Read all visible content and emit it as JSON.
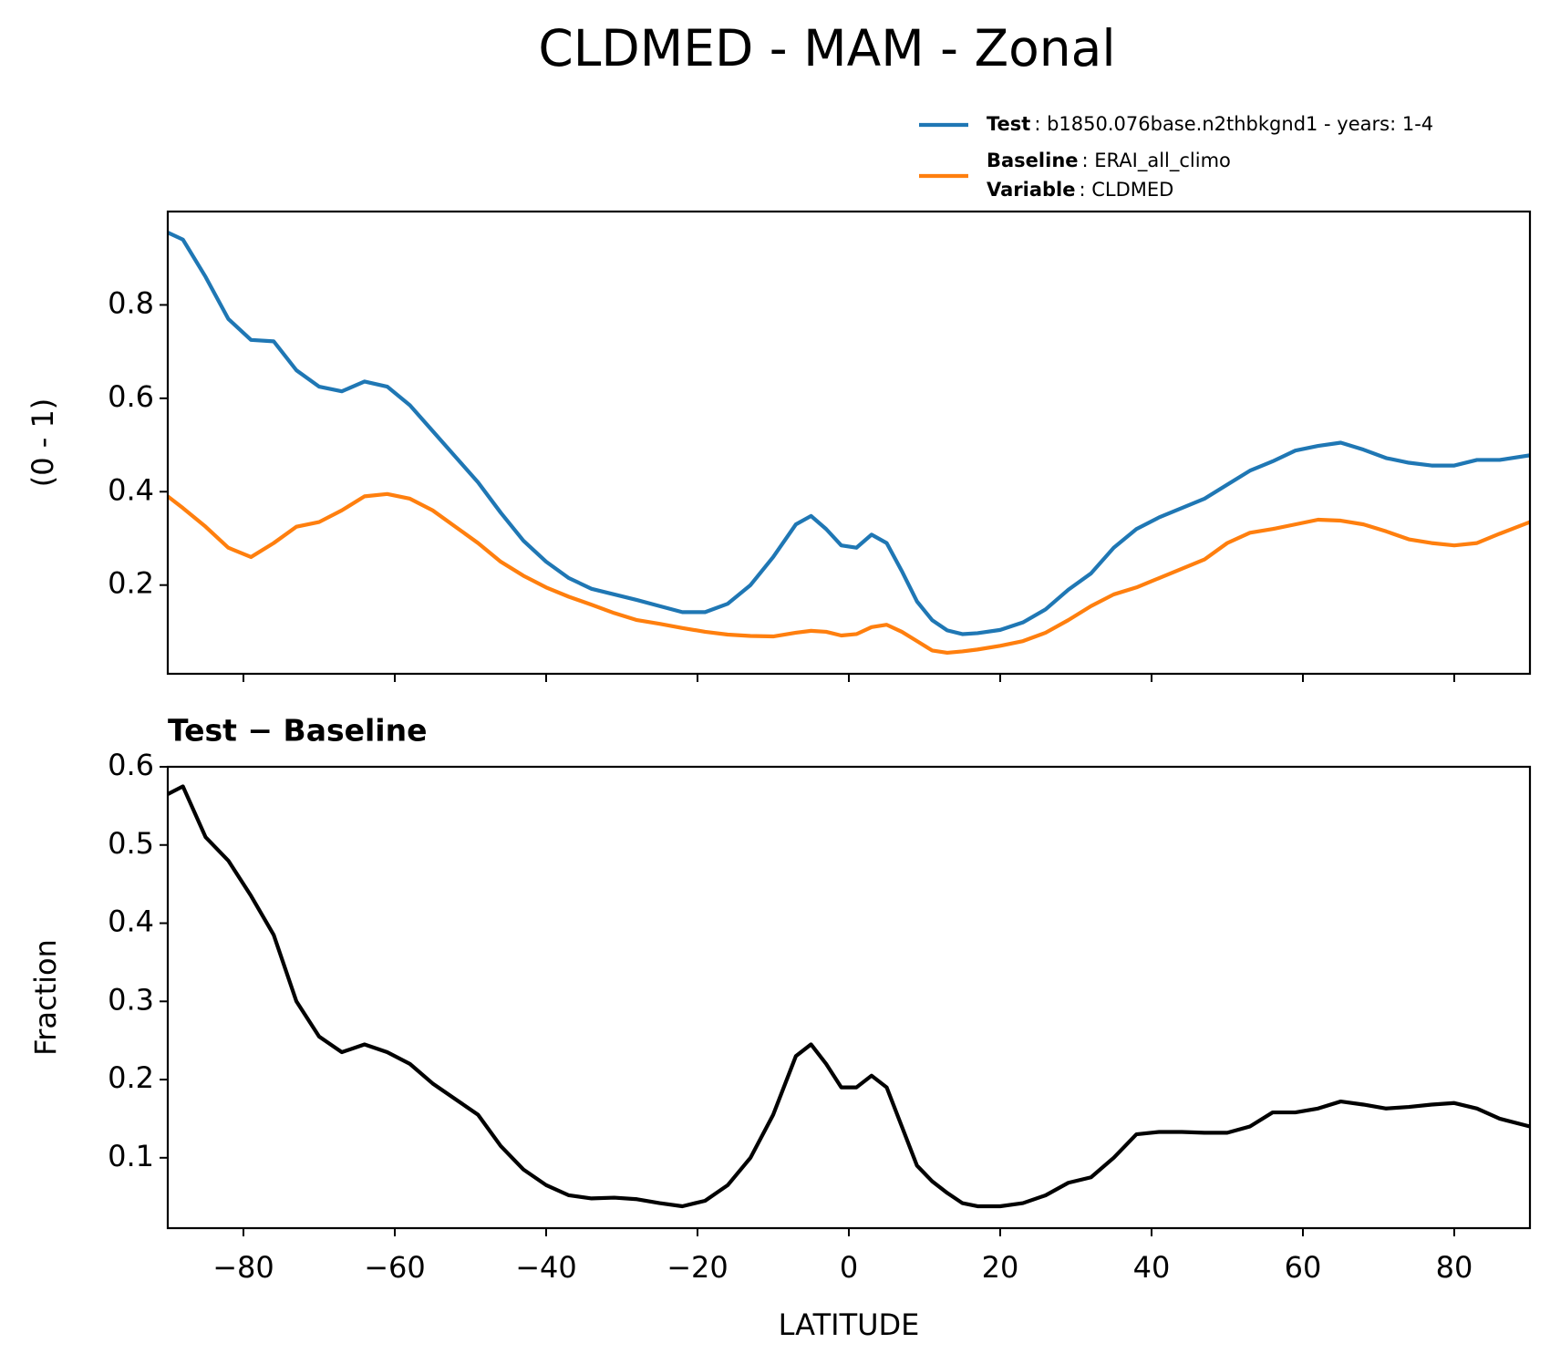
{
  "title": "CLDMED - MAM - Zonal",
  "chart_data": [
    {
      "type": "line",
      "ylabel": "(0 - 1)",
      "x": [
        -90,
        -88,
        -85,
        -82,
        -79,
        -76,
        -73,
        -70,
        -67,
        -64,
        -61,
        -58,
        -55,
        -52,
        -49,
        -46,
        -43,
        -40,
        -37,
        -34,
        -31,
        -28,
        -25,
        -22,
        -19,
        -16,
        -13,
        -10,
        -7,
        -5,
        -3,
        -1,
        1,
        3,
        5,
        7,
        9,
        11,
        13,
        15,
        17,
        20,
        23,
        26,
        29,
        32,
        35,
        38,
        41,
        44,
        47,
        50,
        53,
        56,
        59,
        62,
        65,
        68,
        71,
        74,
        77,
        80,
        83,
        86,
        90
      ],
      "series": [
        {
          "name": "Test",
          "description": ": b1850.076base.n2thbkgnd1 - years: 1-4",
          "color": "#1f77b4",
          "values": [
            0.955,
            0.94,
            0.86,
            0.77,
            0.725,
            0.722,
            0.66,
            0.625,
            0.615,
            0.636,
            0.625,
            0.585,
            0.53,
            0.475,
            0.42,
            0.355,
            0.295,
            0.25,
            0.215,
            0.192,
            0.18,
            0.168,
            0.155,
            0.142,
            0.142,
            0.16,
            0.2,
            0.26,
            0.33,
            0.348,
            0.32,
            0.285,
            0.28,
            0.308,
            0.29,
            0.23,
            0.165,
            0.125,
            0.103,
            0.095,
            0.097,
            0.104,
            0.12,
            0.148,
            0.19,
            0.225,
            0.28,
            0.32,
            0.345,
            0.365,
            0.385,
            0.415,
            0.445,
            0.465,
            0.488,
            0.498,
            0.505,
            0.49,
            0.472,
            0.462,
            0.456,
            0.456,
            0.468,
            0.468,
            0.478
          ]
        },
        {
          "name": "Baseline",
          "description": ": ERAI_all_climo",
          "color": "#ff7f0e",
          "values": [
            0.39,
            0.365,
            0.325,
            0.28,
            0.26,
            0.29,
            0.325,
            0.335,
            0.36,
            0.39,
            0.395,
            0.385,
            0.36,
            0.325,
            0.29,
            0.25,
            0.22,
            0.195,
            0.175,
            0.158,
            0.14,
            0.125,
            0.117,
            0.108,
            0.1,
            0.094,
            0.091,
            0.09,
            0.098,
            0.102,
            0.1,
            0.092,
            0.095,
            0.11,
            0.115,
            0.1,
            0.08,
            0.06,
            0.055,
            0.058,
            0.062,
            0.07,
            0.08,
            0.098,
            0.125,
            0.155,
            0.18,
            0.195,
            0.215,
            0.235,
            0.255,
            0.29,
            0.312,
            0.32,
            0.33,
            0.34,
            0.338,
            0.33,
            0.315,
            0.298,
            0.29,
            0.285,
            0.29,
            0.31,
            0.335
          ]
        }
      ],
      "legend_extra": {
        "name": "Variable",
        "description": ": CLDMED"
      },
      "xlim": [
        -90,
        90
      ],
      "xticks": [
        -80,
        -60,
        -40,
        -20,
        0,
        20,
        40,
        60,
        80
      ],
      "ylim": [
        0.01,
        1.0
      ],
      "yticks": [
        0.2,
        0.4,
        0.6,
        0.8
      ]
    },
    {
      "type": "line",
      "title": "Test − Baseline",
      "ylabel": "Fraction",
      "xlabel": "LATITUDE",
      "x": [
        -90,
        -88,
        -85,
        -82,
        -79,
        -76,
        -73,
        -70,
        -67,
        -64,
        -61,
        -58,
        -55,
        -52,
        -49,
        -46,
        -43,
        -40,
        -37,
        -34,
        -31,
        -28,
        -25,
        -22,
        -19,
        -16,
        -13,
        -10,
        -7,
        -5,
        -3,
        -1,
        1,
        3,
        5,
        7,
        9,
        11,
        13,
        15,
        17,
        20,
        23,
        26,
        29,
        32,
        35,
        38,
        41,
        44,
        47,
        50,
        53,
        56,
        59,
        62,
        65,
        68,
        71,
        74,
        77,
        80,
        83,
        86,
        90
      ],
      "series": [
        {
          "color": "#000000",
          "values": [
            0.565,
            0.575,
            0.51,
            0.48,
            0.435,
            0.385,
            0.3,
            0.255,
            0.235,
            0.245,
            0.235,
            0.22,
            0.195,
            0.175,
            0.155,
            0.115,
            0.085,
            0.065,
            0.052,
            0.048,
            0.049,
            0.047,
            0.042,
            0.038,
            0.045,
            0.065,
            0.1,
            0.155,
            0.23,
            0.245,
            0.22,
            0.19,
            0.19,
            0.205,
            0.19,
            0.14,
            0.09,
            0.07,
            0.055,
            0.042,
            0.038,
            0.038,
            0.042,
            0.052,
            0.068,
            0.075,
            0.1,
            0.13,
            0.133,
            0.133,
            0.132,
            0.132,
            0.14,
            0.158,
            0.158,
            0.163,
            0.172,
            0.168,
            0.163,
            0.165,
            0.168,
            0.17,
            0.163,
            0.15,
            0.14
          ]
        }
      ],
      "xlim": [
        -90,
        90
      ],
      "xticks": [
        {
          "value": -80,
          "label": "−80"
        },
        {
          "value": -60,
          "label": "−60"
        },
        {
          "value": -40,
          "label": "−40"
        },
        {
          "value": -20,
          "label": "−20"
        },
        0,
        20,
        40,
        60,
        80
      ],
      "ylim": [
        0.01,
        0.6
      ],
      "yticks": [
        0.1,
        0.2,
        0.3,
        0.4,
        0.5,
        0.6
      ]
    }
  ]
}
